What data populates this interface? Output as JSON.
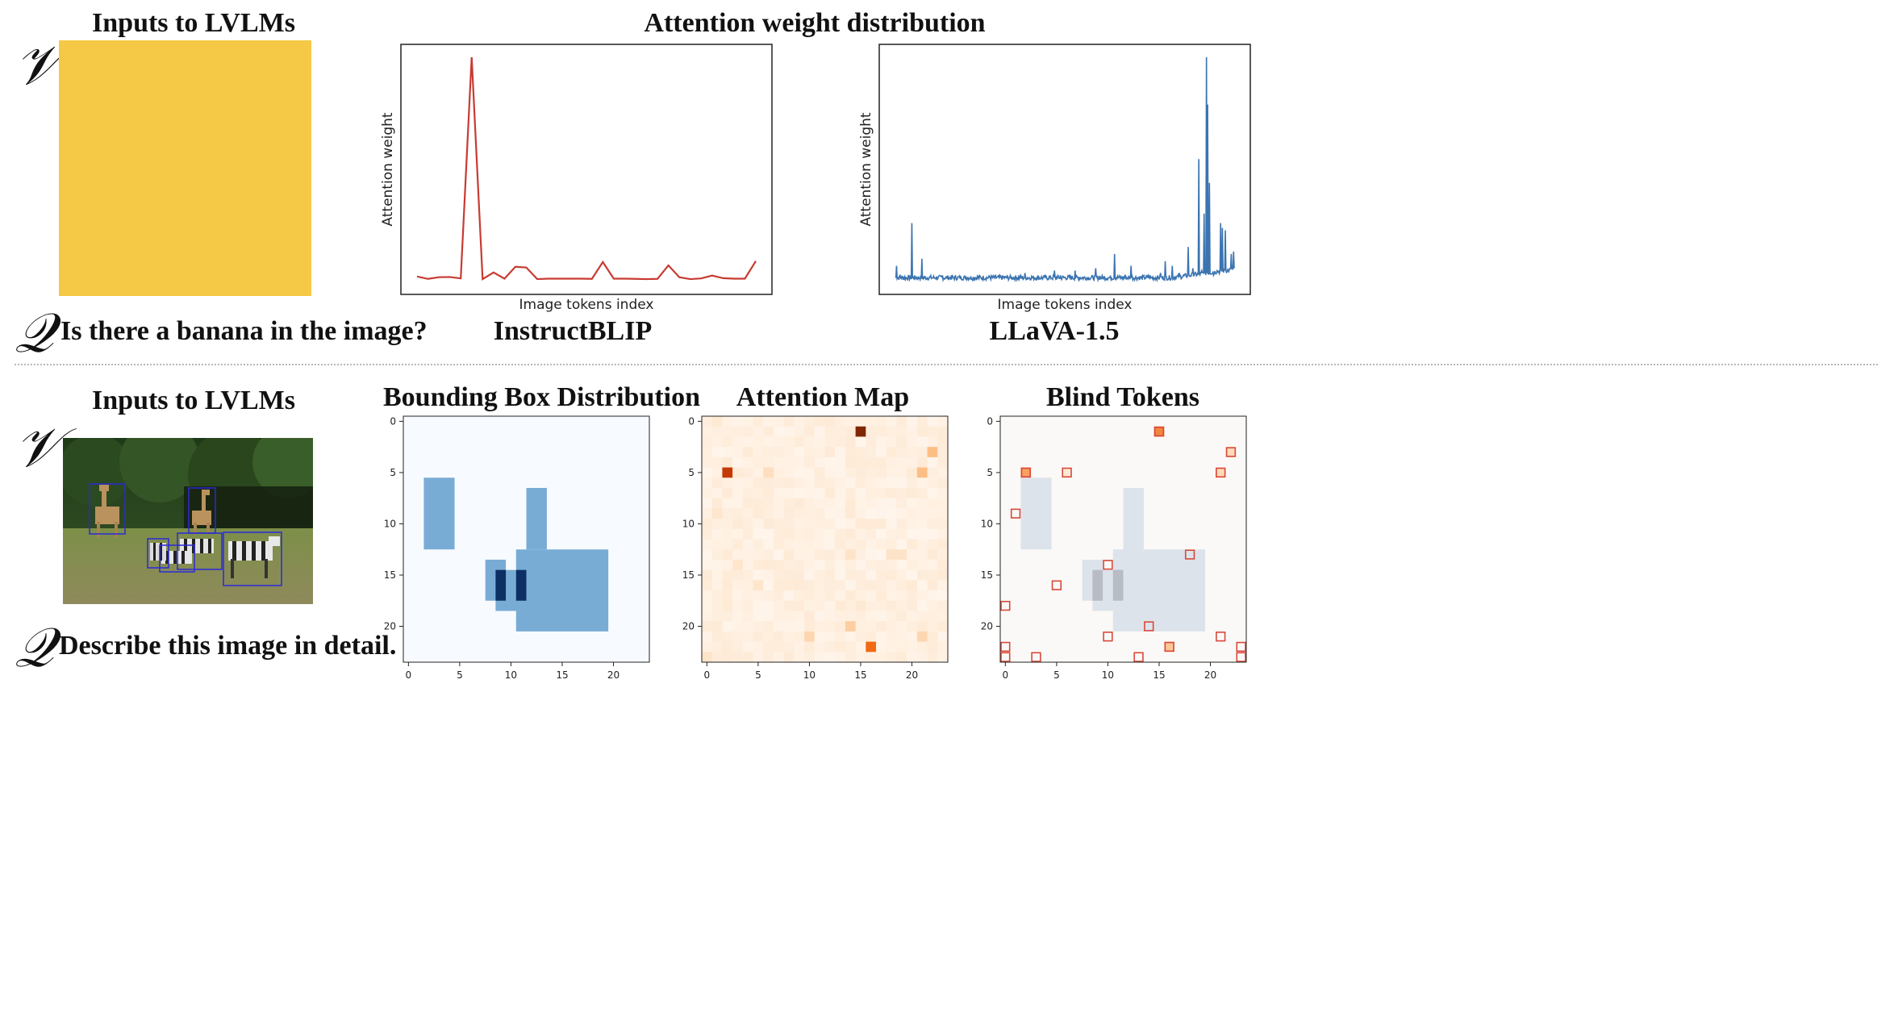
{
  "top": {
    "inputs_title": "Inputs to LVLMs",
    "v_symbol": "𝒱",
    "q_symbol": "𝒬",
    "question": "Is there a banana in the image?",
    "attention_title": "Attention weight distribution",
    "image_color": "#f5c945"
  },
  "bottom": {
    "inputs_title": "Inputs to LVLMs",
    "v_symbol": "𝒱",
    "q_symbol": "𝒬",
    "question": "Describe this image in detail."
  },
  "colors": {
    "instructblip_line": "#c73b32",
    "llava_line": "#3b74b0",
    "bbox_light": "#79acd5",
    "bbox_dark": "#0c2f64",
    "bbox_bg": "#f7fbff",
    "attn_bg": "#fff5eb",
    "blind_box": "#d9483b"
  },
  "chart_data": [
    {
      "type": "line",
      "model": "InstructBLIP",
      "xlabel": "Image tokens index",
      "ylabel": "Attention weight",
      "x": [
        0,
        1,
        2,
        3,
        4,
        5,
        6,
        7,
        8,
        9,
        10,
        11,
        12,
        13,
        14,
        15,
        16,
        17,
        18,
        19,
        20,
        21,
        22,
        23,
        24,
        25,
        26,
        27,
        28,
        29,
        30,
        31
      ],
      "values": [
        0.055,
        0.045,
        0.052,
        0.053,
        0.047,
        0.98,
        0.044,
        0.072,
        0.046,
        0.096,
        0.093,
        0.044,
        0.046,
        0.046,
        0.046,
        0.046,
        0.045,
        0.116,
        0.046,
        0.046,
        0.045,
        0.044,
        0.045,
        0.102,
        0.052,
        0.044,
        0.047,
        0.059,
        0.048,
        0.046,
        0.046,
        0.12
      ],
      "ylim": [
        0,
        1.0
      ],
      "xticks": "none",
      "yticks": "none"
    },
    {
      "type": "line",
      "model": "LLaVA-1.5",
      "xlabel": "Image tokens index",
      "ylabel": "Attention weight",
      "x_count": 576,
      "baseline": 0.05,
      "spikes": [
        [
          2,
          0.1
        ],
        [
          8,
          0.06
        ],
        [
          12,
          0.055
        ],
        [
          28,
          0.28
        ],
        [
          45,
          0.13
        ],
        [
          80,
          0.06
        ],
        [
          120,
          0.055
        ],
        [
          160,
          0.055
        ],
        [
          170,
          0.06
        ],
        [
          220,
          0.07
        ],
        [
          270,
          0.08
        ],
        [
          280,
          0.06
        ],
        [
          305,
          0.08
        ],
        [
          340,
          0.09
        ],
        [
          372,
          0.15
        ],
        [
          390,
          0.06
        ],
        [
          400,
          0.1
        ],
        [
          430,
          0.06
        ],
        [
          450,
          0.07
        ],
        [
          458,
          0.12
        ],
        [
          470,
          0.1
        ],
        [
          482,
          0.07
        ],
        [
          497,
          0.18
        ],
        [
          505,
          0.09
        ],
        [
          515,
          0.55
        ],
        [
          520,
          0.08
        ],
        [
          524,
          0.32
        ],
        [
          528,
          0.98
        ],
        [
          530,
          0.78
        ],
        [
          533,
          0.45
        ],
        [
          540,
          0.06
        ],
        [
          546,
          0.08
        ],
        [
          552,
          0.28
        ],
        [
          555,
          0.26
        ],
        [
          560,
          0.25
        ],
        [
          565,
          0.08
        ],
        [
          570,
          0.15
        ],
        [
          574,
          0.16
        ]
      ],
      "ylim": [
        0,
        1.0
      ],
      "xticks": "none",
      "yticks": "none"
    },
    {
      "type": "heatmap",
      "title": "Bounding Box Distribution",
      "grid": 24,
      "xticks": [
        0,
        5,
        10,
        15,
        20
      ],
      "yticks": [
        0,
        5,
        10,
        15,
        20
      ],
      "cells": [
        {
          "r0": 5.5,
          "r1": 12.5,
          "c0": 1.5,
          "c1": 4.5,
          "v": 0.5
        },
        {
          "r0": 6.5,
          "r1": 12.5,
          "c0": 11.5,
          "c1": 13.5,
          "v": 0.5
        },
        {
          "r0": 12.5,
          "r1": 20.5,
          "c0": 10.5,
          "c1": 19.5,
          "v": 0.5
        },
        {
          "r0": 13.5,
          "r1": 17.5,
          "c0": 7.5,
          "c1": 9.5,
          "v": 0.5
        },
        {
          "r0": 14.5,
          "r1": 18.5,
          "c0": 8.5,
          "c1": 12.5,
          "v": 0.5
        },
        {
          "r0": 14.5,
          "r1": 17.5,
          "c0": 8.5,
          "c1": 9.5,
          "v": 1.0
        },
        {
          "r0": 14.5,
          "r1": 17.5,
          "c0": 10.5,
          "c1": 11.5,
          "v": 1.0
        }
      ]
    },
    {
      "type": "heatmap",
      "title": "Attention Map",
      "grid": 24,
      "xticks": [
        0,
        5,
        10,
        15,
        20
      ],
      "yticks": [
        0,
        5,
        10,
        15,
        20
      ],
      "hot_cells": [
        {
          "r": 1,
          "c": 15,
          "v": 1.0
        },
        {
          "r": 5,
          "c": 2,
          "v": 0.85
        },
        {
          "r": 22,
          "c": 16,
          "v": 0.6
        },
        {
          "r": 3,
          "c": 22,
          "v": 0.35
        },
        {
          "r": 5,
          "c": 21,
          "v": 0.35
        },
        {
          "r": 5,
          "c": 6,
          "v": 0.15
        },
        {
          "r": 21,
          "c": 10,
          "v": 0.2
        },
        {
          "r": 21,
          "c": 21,
          "v": 0.2
        },
        {
          "r": 20,
          "c": 14,
          "v": 0.25
        },
        {
          "r": 13,
          "c": 18,
          "v": 0.12
        },
        {
          "r": 13,
          "c": 19,
          "v": 0.12
        },
        {
          "r": 13,
          "c": 14,
          "v": 0.12
        },
        {
          "r": 9,
          "c": 1,
          "v": 0.1
        },
        {
          "r": 16,
          "c": 5,
          "v": 0.1
        },
        {
          "r": 18,
          "c": 15,
          "v": 0.08
        },
        {
          "r": 14,
          "c": 3,
          "v": 0.1
        },
        {
          "r": 0,
          "c": 1,
          "v": 0.08
        },
        {
          "r": 23,
          "c": 0,
          "v": 0.12
        }
      ]
    },
    {
      "type": "heatmap",
      "title": "Blind Tokens",
      "grid": 24,
      "xticks": [
        0,
        5,
        10,
        15,
        20
      ],
      "yticks": [
        0,
        5,
        10,
        15,
        20
      ],
      "blind_tokens": [
        [
          1,
          15
        ],
        [
          3,
          22
        ],
        [
          5,
          2
        ],
        [
          5,
          6
        ],
        [
          5,
          21
        ],
        [
          9,
          1
        ],
        [
          13,
          18
        ],
        [
          14,
          10
        ],
        [
          16,
          5
        ],
        [
          18,
          0
        ],
        [
          20,
          14
        ],
        [
          21,
          10
        ],
        [
          21,
          21
        ],
        [
          22,
          0
        ],
        [
          22,
          16
        ],
        [
          22,
          23
        ],
        [
          23,
          0
        ],
        [
          23,
          3
        ],
        [
          23,
          13
        ],
        [
          23,
          23
        ]
      ]
    }
  ],
  "chart_labels": {
    "instructblip": "InstructBLIP",
    "llava": "LLaVA-1.5",
    "bbox_title": "Bounding Box Distribution",
    "attn_title": "Attention Map",
    "blind_title": "Blind Tokens",
    "xlabel": "Image tokens index",
    "ylabel": "Attention weight"
  }
}
